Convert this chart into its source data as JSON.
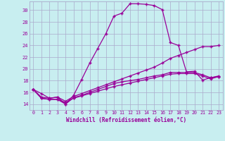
{
  "xlabel": "Windchill (Refroidissement éolien,°C)",
  "bg_color": "#c8eef0",
  "line_color": "#990099",
  "grid_color": "#aaaacc",
  "xlim": [
    -0.5,
    23.5
  ],
  "ylim": [
    13.0,
    31.5
  ],
  "xticks": [
    0,
    1,
    2,
    3,
    4,
    5,
    6,
    7,
    8,
    9,
    10,
    11,
    12,
    13,
    14,
    15,
    16,
    17,
    18,
    19,
    20,
    21,
    22,
    23
  ],
  "yticks": [
    14,
    16,
    18,
    20,
    22,
    24,
    26,
    28,
    30
  ],
  "curve1_x": [
    0,
    1,
    2,
    3,
    4,
    5,
    6,
    7,
    8,
    9,
    10,
    11,
    12,
    13,
    14,
    15,
    16,
    17,
    18,
    19,
    20,
    21,
    22,
    23
  ],
  "curve1_y": [
    16.5,
    15.8,
    15.0,
    15.2,
    14.0,
    15.5,
    18.2,
    21.0,
    23.5,
    26.0,
    29.0,
    29.5,
    31.1,
    31.1,
    31.0,
    30.8,
    30.1,
    24.5,
    24.0,
    19.5,
    19.6,
    18.1,
    18.5,
    18.7
  ],
  "curve2_x": [
    0,
    1,
    2,
    3,
    4,
    5,
    6,
    7,
    8,
    9,
    10,
    11,
    12,
    13,
    14,
    15,
    16,
    17,
    18,
    19,
    20,
    21,
    22,
    23
  ],
  "curve2_y": [
    16.5,
    15.2,
    15.0,
    15.2,
    14.5,
    15.3,
    15.8,
    16.3,
    16.8,
    17.3,
    17.8,
    18.3,
    18.8,
    19.3,
    19.8,
    20.3,
    21.0,
    21.8,
    22.3,
    22.8,
    23.3,
    23.8,
    23.8,
    24.0
  ],
  "curve3_x": [
    0,
    1,
    2,
    3,
    4,
    5,
    6,
    7,
    8,
    9,
    10,
    11,
    12,
    13,
    14,
    15,
    16,
    17,
    18,
    19,
    20,
    21,
    22,
    23
  ],
  "curve3_y": [
    16.5,
    15.0,
    14.8,
    14.8,
    14.3,
    15.0,
    15.4,
    15.8,
    16.2,
    16.6,
    17.0,
    17.3,
    17.6,
    17.9,
    18.2,
    18.5,
    18.8,
    19.1,
    19.2,
    19.2,
    19.2,
    18.8,
    18.3,
    18.7
  ],
  "curve4_x": [
    0,
    1,
    2,
    3,
    4,
    5,
    6,
    7,
    8,
    9,
    10,
    11,
    12,
    13,
    14,
    15,
    16,
    17,
    18,
    19,
    20,
    21,
    22,
    23
  ],
  "curve4_y": [
    16.5,
    15.0,
    14.8,
    14.8,
    14.0,
    15.1,
    15.5,
    16.0,
    16.5,
    17.0,
    17.5,
    17.8,
    18.0,
    18.2,
    18.5,
    18.8,
    19.0,
    19.4,
    19.4,
    19.4,
    19.4,
    19.0,
    18.5,
    18.8
  ]
}
